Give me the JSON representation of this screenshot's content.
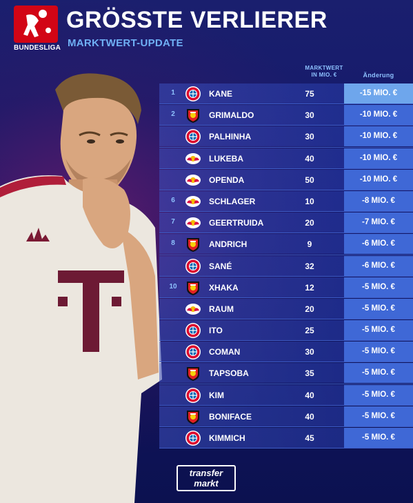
{
  "header": {
    "brand_label": "BUNDESLIGA",
    "title": "GRÖSSTE VERLIERER",
    "subtitle": "MARKTWERT-UPDATE"
  },
  "columns": {
    "value_line1": "MARKTWERT",
    "value_line2": "IN MIO. €",
    "change": "Änderung"
  },
  "colors": {
    "fcb": "#dc052d",
    "b04": "#e32221",
    "rbl": "#dd0741",
    "accent": "#6fb0f5"
  },
  "rows": [
    {
      "rank": "1",
      "club": "fcb",
      "name": "KANE",
      "value": "75",
      "change": "-15 MIO. €"
    },
    {
      "rank": "2",
      "club": "b04",
      "name": "GRIMALDO",
      "value": "30",
      "change": "-10 MIO. €"
    },
    {
      "rank": "",
      "club": "fcb",
      "name": "PALHINHA",
      "value": "30",
      "change": "-10 MIO. €"
    },
    {
      "rank": "",
      "club": "rbl",
      "name": "LUKEBA",
      "value": "40",
      "change": "-10 MIO. €"
    },
    {
      "rank": "",
      "club": "rbl",
      "name": "OPENDA",
      "value": "50",
      "change": "-10 MIO. €"
    },
    {
      "rank": "6",
      "club": "rbl",
      "name": "SCHLAGER",
      "value": "10",
      "change": "-8 MIO. €"
    },
    {
      "rank": "7",
      "club": "rbl",
      "name": "GEERTRUIDA",
      "value": "20",
      "change": "-7 MIO. €"
    },
    {
      "rank": "8",
      "club": "b04",
      "name": "ANDRICH",
      "value": "9",
      "change": "-6 MIO. €"
    },
    {
      "rank": "",
      "club": "fcb",
      "name": "SANÉ",
      "value": "32",
      "change": "-6 MIO. €"
    },
    {
      "rank": "10",
      "club": "b04",
      "name": "XHAKA",
      "value": "12",
      "change": "-5 MIO. €"
    },
    {
      "rank": "",
      "club": "rbl",
      "name": "RAUM",
      "value": "20",
      "change": "-5 MIO. €"
    },
    {
      "rank": "",
      "club": "fcb",
      "name": "ITO",
      "value": "25",
      "change": "-5 MIO. €"
    },
    {
      "rank": "",
      "club": "fcb",
      "name": "COMAN",
      "value": "30",
      "change": "-5 MIO. €"
    },
    {
      "rank": "",
      "club": "b04",
      "name": "TAPSOBA",
      "value": "35",
      "change": "-5 MIO. €"
    },
    {
      "rank": "",
      "club": "fcb",
      "name": "KIM",
      "value": "40",
      "change": "-5 MIO. €"
    },
    {
      "rank": "",
      "club": "b04",
      "name": "BONIFACE",
      "value": "40",
      "change": "-5 MIO. €"
    },
    {
      "rank": "",
      "club": "fcb",
      "name": "KIMMICH",
      "value": "45",
      "change": "-5 MIO. €"
    }
  ],
  "footer": {
    "logo_line1": "transfer",
    "logo_line2": "markt"
  }
}
